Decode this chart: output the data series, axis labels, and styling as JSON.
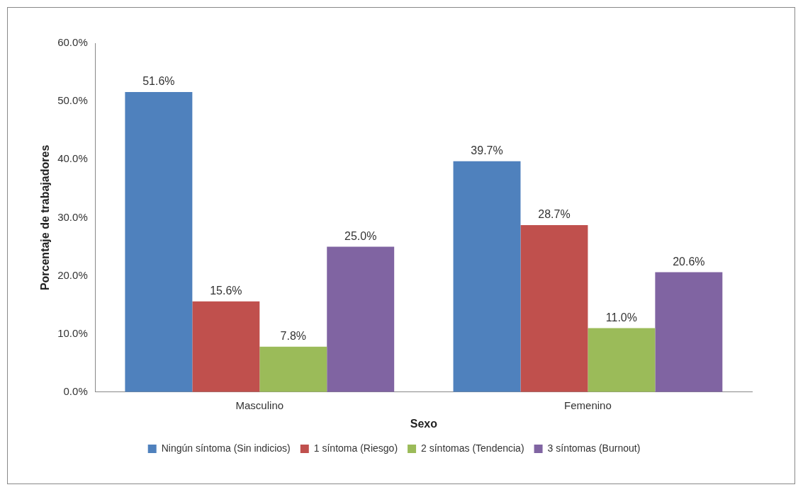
{
  "chart_data": {
    "type": "bar",
    "xlabel": "Sexo",
    "ylabel": "Porcentaje de trabajadores",
    "categories": [
      "Masculino",
      "Femenino"
    ],
    "series": [
      {
        "name": "Ningún síntoma (Sin indicios)",
        "color": "#4f81bd",
        "values": [
          51.6,
          39.7
        ],
        "value_labels": [
          "51.6%",
          "39.7%"
        ]
      },
      {
        "name": "1 síntoma (Riesgo)",
        "color": "#c0504d",
        "values": [
          15.6,
          28.7
        ],
        "value_labels": [
          "15.6%",
          "28.7%"
        ]
      },
      {
        "name": "2 síntomas (Tendencia)",
        "color": "#9bbb59",
        "values": [
          7.8,
          11.0
        ],
        "value_labels": [
          "7.8%",
          "11.0%"
        ]
      },
      {
        "name": "3 síntomas (Burnout)",
        "color": "#8064a2",
        "values": [
          25.0,
          20.6
        ],
        "value_labels": [
          "25.0%",
          "20.6%"
        ]
      }
    ],
    "ylim": [
      0,
      60
    ],
    "yticks": [
      {
        "value": 0,
        "label": "0.0%"
      },
      {
        "value": 10,
        "label": "10.0%"
      },
      {
        "value": 20,
        "label": "20.0%"
      },
      {
        "value": 30,
        "label": "30.0%"
      },
      {
        "value": 40,
        "label": "40.0%"
      },
      {
        "value": 50,
        "label": "50.0%"
      },
      {
        "value": 60,
        "label": "60.0%"
      }
    ],
    "grid": false,
    "legend": "bottom"
  }
}
